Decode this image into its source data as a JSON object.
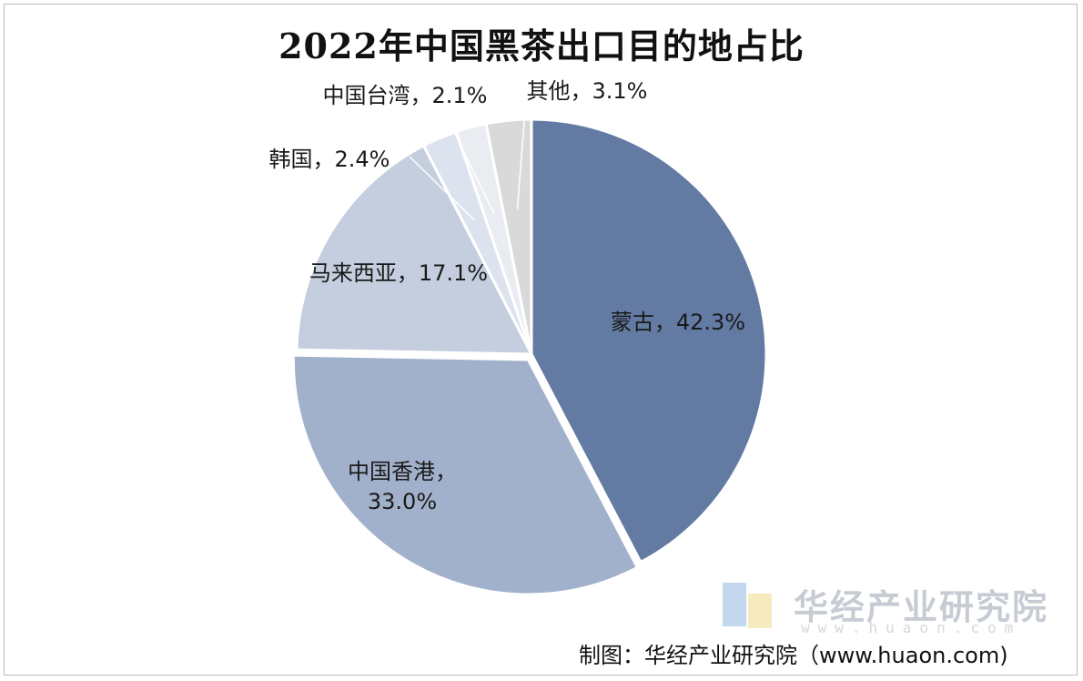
{
  "chart_data": {
    "type": "pie",
    "title": "2022年中国黑茶出口目的地占比",
    "slices": [
      {
        "name": "蒙古",
        "value": 42.3,
        "label": "蒙古，42.3%",
        "color": "#637ba3"
      },
      {
        "name": "中国香港",
        "value": 33.0,
        "label": "中国香港，33.0%",
        "label_lines": [
          "中国香港，",
          "33.0%"
        ],
        "color": "#a2b1cb"
      },
      {
        "name": "马来西亚",
        "value": 17.1,
        "label": "马来西亚，17.1%",
        "color": "#c4cedf"
      },
      {
        "name": "韩国",
        "value": 2.4,
        "label": "韩国，2.4%",
        "color": "#dde3ee"
      },
      {
        "name": "中国台湾",
        "value": 2.1,
        "label": "中国台湾，2.1%",
        "color": "#e9ecf1"
      },
      {
        "name": "其他",
        "value": 3.1,
        "label": "其他，3.1%",
        "color": "#d9d9d9"
      }
    ]
  },
  "watermark": {
    "brand": "华经产业研究院",
    "domain": "www.huaon.com",
    "logo_colors": [
      "#a9c6e8",
      "#f1e3a3"
    ]
  },
  "source_note": "制图：华经产业研究院（www.huaon.com)"
}
